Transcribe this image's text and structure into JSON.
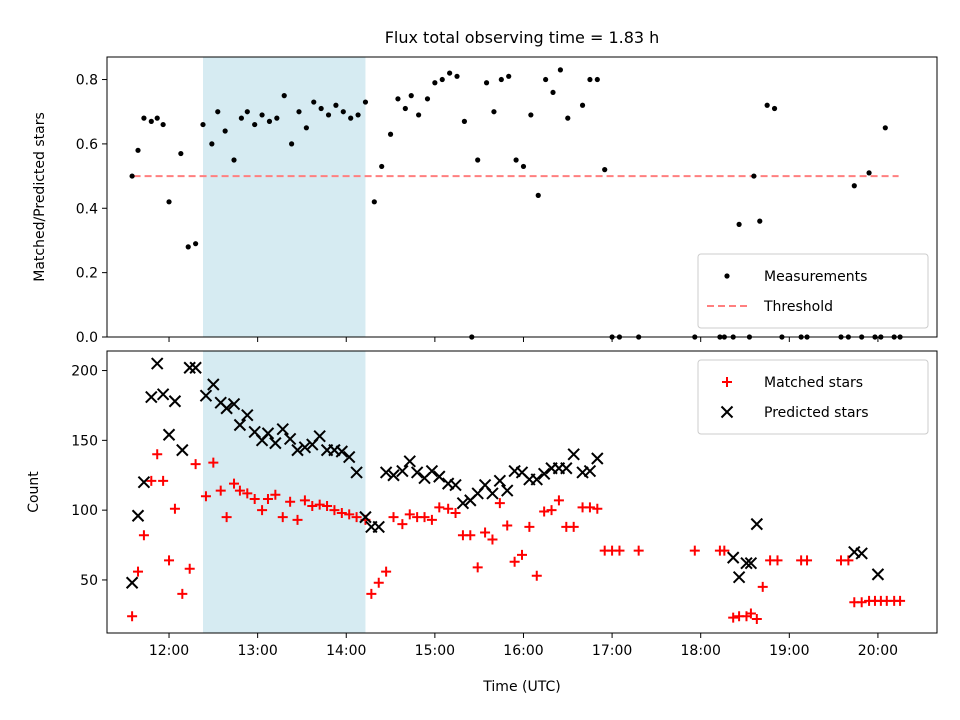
{
  "colors": {
    "measurement": "#000000",
    "threshold": "#ff7f7f",
    "matched": "#ff0000",
    "predicted": "#000000",
    "span": "#add8e6"
  },
  "chart_data": [
    {
      "type": "scatter",
      "title": "Flux total observing time = 1.83 h",
      "xlabel": "",
      "ylabel": "Matched/Predicted stars",
      "xlim": [
        "11:18",
        "20:40"
      ],
      "ylim": [
        0,
        0.87
      ],
      "yticks": [
        "0.0",
        "0.2",
        "0.4",
        "0.6",
        "0.8"
      ],
      "shaded_span": [
        "12:23",
        "14:13"
      ],
      "legend_position": "lower right",
      "threshold": {
        "name": "Threshold",
        "value": 0.5,
        "x_range": [
          "11:36",
          "20:14"
        ]
      },
      "series": [
        {
          "name": "Measurements",
          "marker": "dot",
          "points": [
            [
              "11:35",
              0.5
            ],
            [
              "11:39",
              0.58
            ],
            [
              "11:43",
              0.68
            ],
            [
              "11:48",
              0.67
            ],
            [
              "11:52",
              0.68
            ],
            [
              "11:56",
              0.66
            ],
            [
              "12:00",
              0.42
            ],
            [
              "12:08",
              0.57
            ],
            [
              "12:13",
              0.28
            ],
            [
              "12:18",
              0.29
            ],
            [
              "12:23",
              0.66
            ],
            [
              "12:29",
              0.6
            ],
            [
              "12:33",
              0.7
            ],
            [
              "12:38",
              0.64
            ],
            [
              "12:44",
              0.55
            ],
            [
              "12:49",
              0.68
            ],
            [
              "12:53",
              0.7
            ],
            [
              "12:58",
              0.66
            ],
            [
              "13:03",
              0.69
            ],
            [
              "13:08",
              0.67
            ],
            [
              "13:13",
              0.68
            ],
            [
              "13:18",
              0.75
            ],
            [
              "13:23",
              0.6
            ],
            [
              "13:28",
              0.7
            ],
            [
              "13:33",
              0.65
            ],
            [
              "13:38",
              0.73
            ],
            [
              "13:43",
              0.71
            ],
            [
              "13:48",
              0.69
            ],
            [
              "13:53",
              0.72
            ],
            [
              "13:58",
              0.7
            ],
            [
              "14:03",
              0.68
            ],
            [
              "14:08",
              0.69
            ],
            [
              "14:13",
              0.73
            ],
            [
              "14:19",
              0.42
            ],
            [
              "14:24",
              0.53
            ],
            [
              "14:30",
              0.63
            ],
            [
              "14:35",
              0.74
            ],
            [
              "14:40",
              0.71
            ],
            [
              "14:44",
              0.75
            ],
            [
              "14:49",
              0.69
            ],
            [
              "14:55",
              0.74
            ],
            [
              "15:00",
              0.79
            ],
            [
              "15:05",
              0.8
            ],
            [
              "15:10",
              0.82
            ],
            [
              "15:15",
              0.81
            ],
            [
              "15:20",
              0.67
            ],
            [
              "15:25",
              0.0
            ],
            [
              "15:29",
              0.55
            ],
            [
              "15:35",
              0.79
            ],
            [
              "15:40",
              0.7
            ],
            [
              "15:45",
              0.8
            ],
            [
              "15:50",
              0.81
            ],
            [
              "15:55",
              0.55
            ],
            [
              "16:00",
              0.53
            ],
            [
              "16:05",
              0.69
            ],
            [
              "16:10",
              0.44
            ],
            [
              "16:15",
              0.8
            ],
            [
              "16:20",
              0.76
            ],
            [
              "16:25",
              0.83
            ],
            [
              "16:30",
              0.68
            ],
            [
              "16:40",
              0.72
            ],
            [
              "16:45",
              0.8
            ],
            [
              "16:50",
              0.8
            ],
            [
              "16:55",
              0.52
            ],
            [
              "17:00",
              0.0
            ],
            [
              "17:05",
              0.0
            ],
            [
              "17:18",
              0.0
            ],
            [
              "17:56",
              0.0
            ],
            [
              "18:13",
              0.0
            ],
            [
              "18:16",
              0.0
            ],
            [
              "18:22",
              0.0
            ],
            [
              "18:26",
              0.35
            ],
            [
              "18:33",
              0.0
            ],
            [
              "18:36",
              0.5
            ],
            [
              "18:40",
              0.36
            ],
            [
              "18:45",
              0.72
            ],
            [
              "18:50",
              0.71
            ],
            [
              "18:55",
              0.0
            ],
            [
              "19:08",
              0.0
            ],
            [
              "19:12",
              0.0
            ],
            [
              "19:35",
              0.0
            ],
            [
              "19:40",
              0.0
            ],
            [
              "19:44",
              0.47
            ],
            [
              "19:49",
              0.0
            ],
            [
              "19:54",
              0.51
            ],
            [
              "19:58",
              0.0
            ],
            [
              "20:02",
              0.0
            ],
            [
              "20:05",
              0.65
            ],
            [
              "20:11",
              0.0
            ],
            [
              "20:15",
              0.0
            ]
          ]
        }
      ]
    },
    {
      "type": "scatter",
      "title": "",
      "xlabel": "Time (UTC)",
      "ylabel": "Count",
      "xlim": [
        "11:18",
        "20:40"
      ],
      "ylim": [
        12,
        214
      ],
      "yticks": [
        "50",
        "100",
        "150",
        "200"
      ],
      "xticks": [
        "12:00",
        "13:00",
        "14:00",
        "15:00",
        "16:00",
        "17:00",
        "18:00",
        "19:00",
        "20:00"
      ],
      "shaded_span": [
        "12:23",
        "14:13"
      ],
      "legend_position": "upper right",
      "series": [
        {
          "name": "Matched stars",
          "marker": "plus",
          "points": [
            [
              "11:35",
              24
            ],
            [
              "11:39",
              56
            ],
            [
              "11:43",
              82
            ],
            [
              "11:48",
              121
            ],
            [
              "11:52",
              140
            ],
            [
              "11:56",
              121
            ],
            [
              "12:00",
              64
            ],
            [
              "12:04",
              101
            ],
            [
              "12:09",
              40
            ],
            [
              "12:14",
              58
            ],
            [
              "12:18",
              133
            ],
            [
              "12:25",
              110
            ],
            [
              "12:30",
              134
            ],
            [
              "12:35",
              114
            ],
            [
              "12:39",
              95
            ],
            [
              "12:44",
              119
            ],
            [
              "12:48",
              114
            ],
            [
              "12:53",
              112
            ],
            [
              "12:58",
              108
            ],
            [
              "13:03",
              100
            ],
            [
              "13:07",
              108
            ],
            [
              "13:12",
              111
            ],
            [
              "13:17",
              95
            ],
            [
              "13:22",
              106
            ],
            [
              "13:27",
              93
            ],
            [
              "13:32",
              107
            ],
            [
              "13:37",
              103
            ],
            [
              "13:42",
              104
            ],
            [
              "13:47",
              103
            ],
            [
              "13:52",
              100
            ],
            [
              "13:57",
              98
            ],
            [
              "14:02",
              97
            ],
            [
              "14:07",
              95
            ],
            [
              "14:13",
              93
            ],
            [
              "14:17",
              40
            ],
            [
              "14:22",
              48
            ],
            [
              "14:27",
              56
            ],
            [
              "14:32",
              95
            ],
            [
              "14:38",
              90
            ],
            [
              "14:43",
              97
            ],
            [
              "14:48",
              95
            ],
            [
              "14:53",
              95
            ],
            [
              "14:58",
              93
            ],
            [
              "15:03",
              102
            ],
            [
              "15:09",
              101
            ],
            [
              "15:14",
              98
            ],
            [
              "15:19",
              82
            ],
            [
              "15:24",
              82
            ],
            [
              "15:29",
              59
            ],
            [
              "15:34",
              84
            ],
            [
              "15:39",
              79
            ],
            [
              "15:44",
              105
            ],
            [
              "15:49",
              89
            ],
            [
              "15:54",
              63
            ],
            [
              "15:59",
              68
            ],
            [
              "16:04",
              88
            ],
            [
              "16:09",
              53
            ],
            [
              "16:14",
              99
            ],
            [
              "16:19",
              100
            ],
            [
              "16:24",
              107
            ],
            [
              "16:29",
              88
            ],
            [
              "16:34",
              88
            ],
            [
              "16:40",
              102
            ],
            [
              "16:45",
              102
            ],
            [
              "16:50",
              101
            ],
            [
              "16:55",
              71
            ],
            [
              "17:00",
              71
            ],
            [
              "17:05",
              71
            ],
            [
              "17:18",
              71
            ],
            [
              "17:56",
              71
            ],
            [
              "18:13",
              71
            ],
            [
              "18:16",
              71
            ],
            [
              "18:22",
              23
            ],
            [
              "18:26",
              24
            ],
            [
              "18:31",
              24
            ],
            [
              "18:34",
              26
            ],
            [
              "18:38",
              22
            ],
            [
              "18:42",
              45
            ],
            [
              "18:47",
              64
            ],
            [
              "18:52",
              64
            ],
            [
              "19:08",
              64
            ],
            [
              "19:12",
              64
            ],
            [
              "19:35",
              64
            ],
            [
              "19:40",
              64
            ],
            [
              "19:44",
              34
            ],
            [
              "19:49",
              34
            ],
            [
              "19:54",
              35
            ],
            [
              "19:58",
              35
            ],
            [
              "20:02",
              35
            ],
            [
              "20:06",
              35
            ],
            [
              "20:11",
              35
            ],
            [
              "20:15",
              35
            ]
          ]
        },
        {
          "name": "Predicted stars",
          "marker": "x",
          "points": [
            [
              "11:35",
              48
            ],
            [
              "11:39",
              96
            ],
            [
              "11:43",
              120
            ],
            [
              "11:48",
              181
            ],
            [
              "11:52",
              205
            ],
            [
              "11:56",
              183
            ],
            [
              "12:00",
              154
            ],
            [
              "12:04",
              178
            ],
            [
              "12:09",
              143
            ],
            [
              "12:14",
              202
            ],
            [
              "12:18",
              202
            ],
            [
              "12:25",
              182
            ],
            [
              "12:30",
              190
            ],
            [
              "12:35",
              177
            ],
            [
              "12:39",
              173
            ],
            [
              "12:44",
              176
            ],
            [
              "12:48",
              161
            ],
            [
              "12:53",
              168
            ],
            [
              "12:58",
              156
            ],
            [
              "13:03",
              150
            ],
            [
              "13:07",
              155
            ],
            [
              "13:12",
              148
            ],
            [
              "13:17",
              158
            ],
            [
              "13:22",
              151
            ],
            [
              "13:27",
              143
            ],
            [
              "13:32",
              145
            ],
            [
              "13:37",
              147
            ],
            [
              "13:42",
              153
            ],
            [
              "13:47",
              143
            ],
            [
              "13:52",
              143
            ],
            [
              "13:57",
              142
            ],
            [
              "14:02",
              138
            ],
            [
              "14:07",
              127
            ],
            [
              "14:13",
              95
            ],
            [
              "14:17",
              88
            ],
            [
              "14:22",
              88
            ],
            [
              "14:27",
              127
            ],
            [
              "14:32",
              125
            ],
            [
              "14:38",
              128
            ],
            [
              "14:43",
              135
            ],
            [
              "14:48",
              127
            ],
            [
              "14:53",
              123
            ],
            [
              "14:58",
              128
            ],
            [
              "15:03",
              124
            ],
            [
              "15:09",
              119
            ],
            [
              "15:14",
              118
            ],
            [
              "15:19",
              105
            ],
            [
              "15:24",
              107
            ],
            [
              "15:29",
              112
            ],
            [
              "15:34",
              118
            ],
            [
              "15:39",
              112
            ],
            [
              "15:44",
              121
            ],
            [
              "15:49",
              114
            ],
            [
              "15:54",
              128
            ],
            [
              "15:59",
              127
            ],
            [
              "16:04",
              122
            ],
            [
              "16:09",
              122
            ],
            [
              "16:14",
              126
            ],
            [
              "16:19",
              130
            ],
            [
              "16:24",
              130
            ],
            [
              "16:29",
              130
            ],
            [
              "16:34",
              140
            ],
            [
              "16:40",
              127
            ],
            [
              "16:45",
              128
            ],
            [
              "16:50",
              137
            ],
            [
              "18:22",
              66
            ],
            [
              "18:26",
              52
            ],
            [
              "18:31",
              62
            ],
            [
              "18:34",
              62
            ],
            [
              "18:38",
              90
            ],
            [
              "19:44",
              70
            ],
            [
              "19:49",
              69
            ],
            [
              "20:00",
              54
            ]
          ]
        }
      ]
    }
  ]
}
